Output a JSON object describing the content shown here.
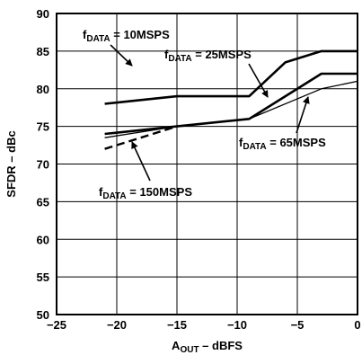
{
  "chart_data": {
    "type": "line",
    "title": "",
    "xlabel": {
      "main": "A",
      "sub": "OUT",
      "rest": " – dBFS"
    },
    "ylabel": "SFDR – dBc",
    "xlim": [
      -25,
      0
    ],
    "ylim": [
      50,
      90
    ],
    "x_ticks": [
      "−25",
      "−20",
      "−15",
      "−10",
      "−5",
      "0"
    ],
    "y_ticks": [
      "50",
      "55",
      "60",
      "65",
      "70",
      "75",
      "80",
      "85",
      "90"
    ],
    "grid": true,
    "series": [
      {
        "name": "f_DATA = 10MSPS",
        "label": {
          "main": "f",
          "sub": "DATA",
          "rest": " = 10MSPS"
        },
        "style": "solid-thick",
        "x": [
          -21,
          -15,
          -9,
          -6,
          -3,
          0
        ],
        "y": [
          78,
          79,
          79,
          83.5,
          85,
          85
        ]
      },
      {
        "name": "f_DATA = 25MSPS",
        "label": {
          "main": "f",
          "sub": "DATA",
          "rest": " = 25MSPS"
        },
        "style": "solid-thick",
        "x": [
          -21,
          -15,
          -9,
          -3,
          0
        ],
        "y": [
          74,
          75,
          76,
          82,
          82
        ]
      },
      {
        "name": "f_DATA = 65MSPS",
        "label": {
          "main": "f",
          "sub": "DATA",
          "rest": " = 65MSPS"
        },
        "style": "solid-thin",
        "x": [
          -21,
          -15,
          -9,
          -3,
          0
        ],
        "y": [
          73.5,
          75,
          76,
          80,
          81
        ]
      },
      {
        "name": "f_DATA = 150MSPS",
        "label": {
          "main": "f",
          "sub": "DATA",
          "rest": " = 150MSPS"
        },
        "style": "dashed",
        "x": [
          -21,
          -15
        ],
        "y": [
          72,
          75
        ]
      }
    ]
  }
}
